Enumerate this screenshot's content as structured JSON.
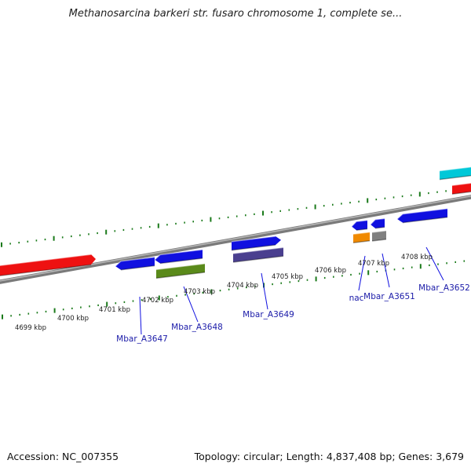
{
  "title": "Methanosarcina barkeri str. fusaro chromosome 1, complete se...",
  "footer": {
    "accession": "Accession: NC_007355",
    "summary": "Topology: circular; Length: 4,837,408 bp; Genes: 3,679"
  },
  "ticks": [
    "4699 kbp",
    "4700 kbp",
    "4701 kbp",
    "4702 kbp",
    "4703 kbp",
    "4704 kbp",
    "4705 kbp",
    "4706 kbp",
    "4707 kbp",
    "4708 kbp"
  ],
  "gene_labels": [
    "Mbar_A3647",
    "Mbar_A3648",
    "Mbar_A3649",
    "nac",
    "Mbar_A3651",
    "Mbar_A3652"
  ],
  "colors": {
    "cds": "#1010e0",
    "rrna": "#ee1111",
    "trna": "#00c8d8",
    "misc": "#5a8a1a",
    "repeat": "#4a3f8f",
    "orange": "#f08a00",
    "gray": "#808080",
    "backbone": "#8a8a8a",
    "tick": "#1a7a1a"
  }
}
